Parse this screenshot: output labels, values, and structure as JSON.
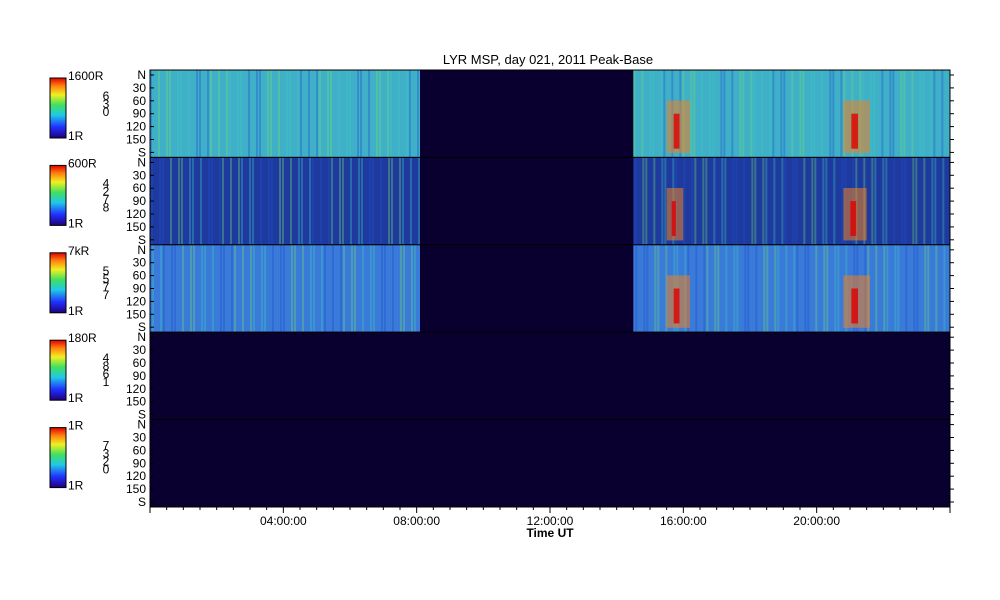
{
  "chart_data": {
    "type": "heatmap",
    "title": "LYR MSP, day 021, 2011 Peak-Base",
    "xlabel": "Time UT",
    "x_ticks": [
      "04:00:00",
      "08:00:00",
      "12:00:00",
      "16:00:00",
      "20:00:00"
    ],
    "xlim_hours": [
      0,
      24
    ],
    "y_tick_labels": [
      "N",
      "30",
      "60",
      "90",
      "120",
      "150",
      "S"
    ],
    "data_gap_hours": [
      8.1,
      14.5
    ],
    "panels": [
      {
        "colorbar_max": "1600R",
        "colorbar_min": "1R",
        "wavelength_digits": [
          "6",
          "3",
          "0"
        ],
        "base_color": "#3fb0c8",
        "active_hours": [
          [
            15.5,
            16.2
          ],
          [
            20.8,
            21.6
          ]
        ]
      },
      {
        "colorbar_max": "600R",
        "colorbar_min": "1R",
        "wavelength_digits": [
          "4",
          "2",
          "7",
          "8"
        ],
        "base_color": "#1e3a9e",
        "active_hours": [
          [
            15.5,
            16.0
          ],
          [
            20.8,
            21.5
          ]
        ]
      },
      {
        "colorbar_max": "7kR",
        "colorbar_min": "1R",
        "wavelength_digits": [
          "5",
          "5",
          "7",
          "7"
        ],
        "base_color": "#3a7ad8",
        "active_hours": [
          [
            15.5,
            16.2
          ],
          [
            20.8,
            21.6
          ]
        ]
      },
      {
        "colorbar_max": "180R",
        "colorbar_min": "1R",
        "wavelength_digits": [
          "4",
          "8",
          "6",
          "1"
        ],
        "base_color": "#0a0030",
        "active_hours": []
      },
      {
        "colorbar_max": "1R",
        "colorbar_min": "1R",
        "wavelength_digits": [
          "7",
          "3",
          "2",
          "0"
        ],
        "base_color": "#0a0030",
        "active_hours": []
      }
    ]
  }
}
